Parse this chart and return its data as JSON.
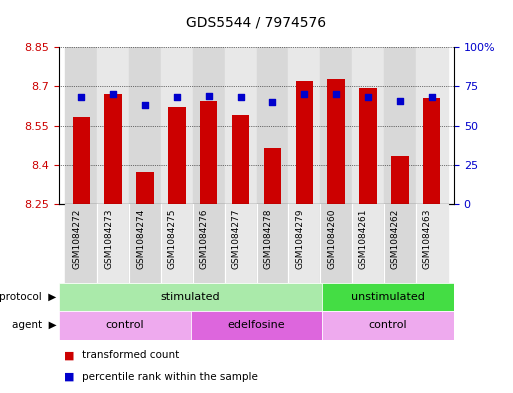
{
  "title": "GDS5544 / 7974576",
  "samples": [
    "GSM1084272",
    "GSM1084273",
    "GSM1084274",
    "GSM1084275",
    "GSM1084276",
    "GSM1084277",
    "GSM1084278",
    "GSM1084279",
    "GSM1084260",
    "GSM1084261",
    "GSM1084262",
    "GSM1084263"
  ],
  "bar_values": [
    8.585,
    8.67,
    8.375,
    8.62,
    8.645,
    8.59,
    8.465,
    8.72,
    8.73,
    8.695,
    8.435,
    8.655
  ],
  "percentile_values": [
    68,
    70,
    63,
    68,
    69,
    68,
    65,
    70,
    70,
    68,
    66,
    68
  ],
  "bar_bottom": 8.25,
  "ylim_left": [
    8.25,
    8.85
  ],
  "ylim_right": [
    0,
    100
  ],
  "yticks_left": [
    8.25,
    8.4,
    8.55,
    8.7,
    8.85
  ],
  "yticks_right": [
    0,
    25,
    50,
    75,
    100
  ],
  "ytick_labels_right": [
    "0",
    "25",
    "50",
    "75",
    "100%"
  ],
  "bar_color": "#cc0000",
  "dot_color": "#0000cc",
  "bar_width": 0.55,
  "protocol_stimulated_color": "#aaeaaa",
  "protocol_unstimulated_color": "#44dd44",
  "agent_control_color": "#eeaaee",
  "agent_edelfosine_color": "#dd66dd",
  "col_bg_even": "#d8d8d8",
  "col_bg_odd": "#e8e8e8",
  "legend_bar_label": "transformed count",
  "legend_dot_label": "percentile rank within the sample",
  "tick_label_color_left": "#cc0000",
  "tick_label_color_right": "#0000cc",
  "grid_linestyle": "dotted",
  "grid_color": "#000000"
}
